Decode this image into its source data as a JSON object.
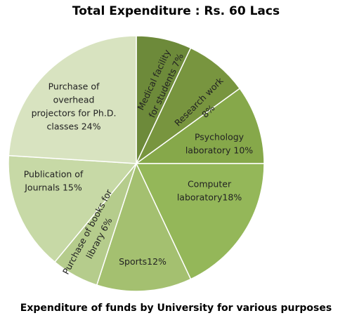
{
  "chart_data": {
    "type": "pie",
    "title": "Total Expenditure : Rs. 60 Lacs",
    "caption": "Expenditure of funds by University for various purposes",
    "slices": [
      {
        "label": "Medical facility for students 7%",
        "value": 7,
        "color": "#6d8a3a"
      },
      {
        "label": "Research work 8%",
        "value": 8,
        "color": "#78953f"
      },
      {
        "label": "Psychology laboratory 10%",
        "value": 10,
        "color": "#86a84a"
      },
      {
        "label": "Computer laboratory18%",
        "value": 18,
        "color": "#94b759"
      },
      {
        "label": "Sports12%",
        "value": 12,
        "color": "#a4c070"
      },
      {
        "label": "Purchase of books for library 6%",
        "value": 6,
        "color": "#b5cc8c"
      },
      {
        "label": "Publication of Journals 15%",
        "value": 15,
        "color": "#c7d9a6"
      },
      {
        "label": "Purchase of overhead projectors for Ph.D. classes 24%",
        "value": 24,
        "color": "#d8e3c0"
      }
    ]
  }
}
